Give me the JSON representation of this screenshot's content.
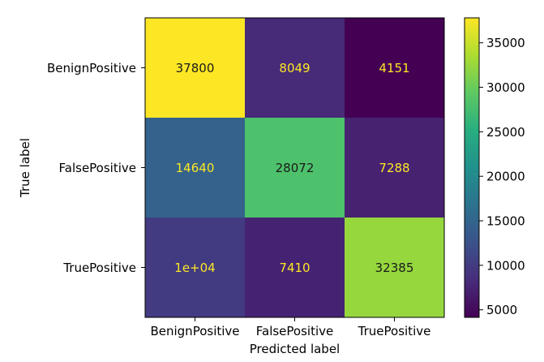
{
  "chart_data": {
    "type": "heatmap",
    "title": "",
    "xlabel": "Predicted label",
    "ylabel": "True label",
    "x_categories": [
      "BenignPositive",
      "FalsePositive",
      "TruePositive"
    ],
    "y_categories": [
      "BenignPositive",
      "FalsePositive",
      "TruePositive"
    ],
    "values": [
      [
        37800,
        8049,
        4151
      ],
      [
        14640,
        28072,
        7288
      ],
      [
        10000,
        7410,
        32385
      ]
    ],
    "cell_labels": [
      [
        "37800",
        "8049",
        "4151"
      ],
      [
        "14640",
        "28072",
        "7288"
      ],
      [
        "1e+04",
        "7410",
        "32385"
      ]
    ],
    "colormap": "viridis",
    "colorbar": {
      "ticks": [
        5000,
        10000,
        15000,
        20000,
        25000,
        30000,
        35000
      ],
      "tick_labels": [
        "5000",
        "10000",
        "15000",
        "20000",
        "25000",
        "30000",
        "35000"
      ],
      "range": [
        4151,
        37800
      ]
    },
    "text_colors": {
      "on_dark": "#fde725",
      "on_light": "#1a1a1a"
    },
    "grid": false
  }
}
